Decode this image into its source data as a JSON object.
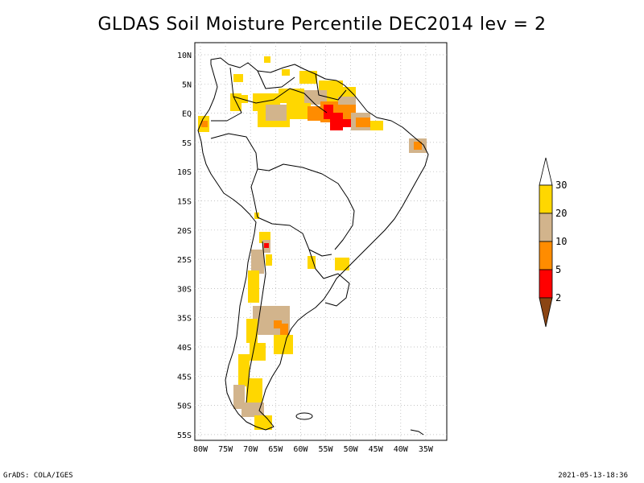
{
  "title": "GLDAS Soil Moisture Percentile DEC2014 lev = 2",
  "lat_ticks": [
    "10N",
    "5N",
    "EQ",
    "5S",
    "10S",
    "15S",
    "20S",
    "25S",
    "30S",
    "35S",
    "40S",
    "45S",
    "50S",
    "55S"
  ],
  "lon_ticks": [
    "80W",
    "75W",
    "70W",
    "65W",
    "60W",
    "55W",
    "50W",
    "45W",
    "40W",
    "35W"
  ],
  "legend": {
    "labels": [
      "30",
      "20",
      "10",
      "5",
      "2"
    ],
    "colors": {
      "lt2": "#8b4513",
      "2to5": "#ff0000",
      "5to10": "#ff8c00",
      "10to20": "#d2b48c",
      "20to30": "#ffd700",
      "gt30": "#ffffff"
    }
  },
  "credit_left": "GrADS: COLA/IGES",
  "credit_right": "2021-05-13-18:36"
}
